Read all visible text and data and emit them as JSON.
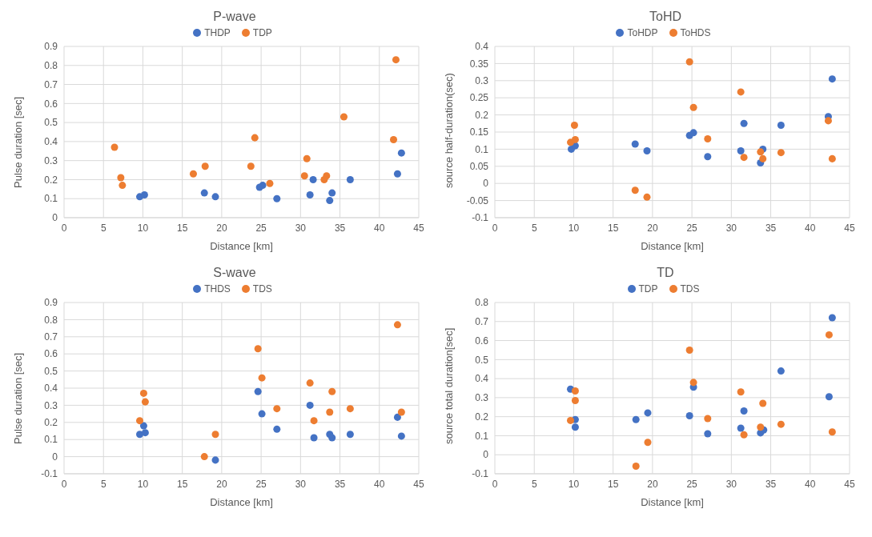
{
  "chart_data": [
    {
      "type": "scatter",
      "title": "P-wave",
      "xlabel": "Distance [km]",
      "ylabel": "Pulse duration [sec]",
      "xlim": [
        0,
        45
      ],
      "xticks": [
        0,
        5,
        10,
        15,
        20,
        25,
        30,
        35,
        40,
        45
      ],
      "ylim": [
        0,
        0.9
      ],
      "yticks": [
        0,
        0.1,
        0.2,
        0.3,
        0.4,
        0.5,
        0.6,
        0.7,
        0.8,
        0.9
      ],
      "grid": true,
      "legend": "top",
      "marker": "circle",
      "series": [
        {
          "name": "THDP",
          "color": "#4472c4",
          "x": [
            9.6,
            10.2,
            17.8,
            19.2,
            24.8,
            25.2,
            27,
            31.2,
            31.6,
            33.7,
            34,
            36.3,
            42.3,
            42.8
          ],
          "values": [
            0.11,
            0.12,
            0.13,
            0.11,
            0.16,
            0.17,
            0.1,
            0.12,
            0.2,
            0.09,
            0.13,
            0.2,
            0.23,
            0.34
          ]
        },
        {
          "name": "TDP",
          "color": "#ed7d31",
          "x": [
            6.4,
            7.2,
            7.4,
            16.4,
            17.9,
            23.7,
            24.2,
            26.1,
            30.5,
            30.8,
            33,
            33.3,
            35.5,
            41.8,
            42.1
          ],
          "values": [
            0.37,
            0.21,
            0.17,
            0.23,
            0.27,
            0.27,
            0.42,
            0.18,
            0.22,
            0.31,
            0.2,
            0.22,
            0.53,
            0.41,
            0.83
          ]
        }
      ]
    },
    {
      "type": "scatter",
      "title": "ToHD",
      "xlabel": "Distance [km]",
      "ylabel": "source half-duration(sec)",
      "xlim": [
        0,
        45
      ],
      "xticks": [
        0,
        5,
        10,
        15,
        20,
        25,
        30,
        35,
        40,
        45
      ],
      "ylim": [
        -0.1,
        0.4
      ],
      "yticks": [
        -0.1,
        -0.05,
        0,
        0.05,
        0.1,
        0.15,
        0.2,
        0.25,
        0.3,
        0.35,
        0.4
      ],
      "grid": true,
      "legend": "top",
      "marker": "circle",
      "series": [
        {
          "name": "ToHDP",
          "color": "#4472c4",
          "x": [
            9.7,
            10.2,
            17.8,
            19.3,
            24.7,
            25.2,
            27,
            31.2,
            31.6,
            33.7,
            34,
            36.3,
            42.3,
            42.8
          ],
          "values": [
            0.1,
            0.11,
            0.115,
            0.095,
            0.14,
            0.148,
            0.078,
            0.095,
            0.175,
            0.06,
            0.1,
            0.17,
            0.195,
            0.305
          ]
        },
        {
          "name": "ToHDS",
          "color": "#ed7d31",
          "x": [
            9.6,
            10.1,
            10.2,
            17.8,
            19.3,
            24.7,
            25.2,
            27,
            31.2,
            31.6,
            33.7,
            34,
            36.3,
            42.3,
            42.8
          ],
          "values": [
            0.12,
            0.17,
            0.128,
            -0.02,
            -0.04,
            0.355,
            0.222,
            0.13,
            0.267,
            0.076,
            0.092,
            0.072,
            0.09,
            0.183,
            0.072
          ]
        }
      ]
    },
    {
      "type": "scatter",
      "title": "S-wave",
      "xlabel": "Distance [km]",
      "ylabel": "Pulse duration [sec]",
      "xlim": [
        0,
        45
      ],
      "xticks": [
        0,
        5,
        10,
        15,
        20,
        25,
        30,
        35,
        40,
        45
      ],
      "ylim": [
        -0.1,
        0.9
      ],
      "yticks": [
        -0.1,
        0,
        0.1,
        0.2,
        0.3,
        0.4,
        0.5,
        0.6,
        0.7,
        0.8,
        0.9
      ],
      "grid": true,
      "legend": "top",
      "marker": "circle",
      "series": [
        {
          "name": "THDS",
          "color": "#4472c4",
          "x": [
            9.6,
            10.1,
            10.3,
            19.2,
            24.6,
            25.1,
            27,
            31.2,
            31.7,
            33.7,
            34,
            36.3,
            42.3,
            42.8
          ],
          "values": [
            0.13,
            0.18,
            0.14,
            -0.02,
            0.38,
            0.25,
            0.16,
            0.3,
            0.11,
            0.13,
            0.11,
            0.13,
            0.23,
            0.12
          ]
        },
        {
          "name": "TDS",
          "color": "#ed7d31",
          "x": [
            9.6,
            10.1,
            10.3,
            17.8,
            19.2,
            24.6,
            25.1,
            27,
            31.2,
            31.7,
            33.7,
            34,
            36.3,
            42.3,
            42.8
          ],
          "values": [
            0.21,
            0.37,
            0.32,
            0,
            0.13,
            0.63,
            0.46,
            0.28,
            0.43,
            0.21,
            0.26,
            0.38,
            0.28,
            0.77,
            0.26
          ]
        }
      ]
    },
    {
      "type": "scatter",
      "title": "TD",
      "xlabel": "Distance [km]",
      "ylabel": "source total duration[sec]",
      "xlim": [
        0,
        45
      ],
      "xticks": [
        0,
        5,
        10,
        15,
        20,
        25,
        30,
        35,
        40,
        45
      ],
      "ylim": [
        -0.1,
        0.8
      ],
      "yticks": [
        -0.1,
        0,
        0.1,
        0.2,
        0.3,
        0.4,
        0.5,
        0.6,
        0.7,
        0.8
      ],
      "grid": true,
      "legend": "top",
      "marker": "circle",
      "series": [
        {
          "name": "TDP",
          "color": "#4472c4",
          "x": [
            9.6,
            10.2,
            10.2,
            17.9,
            19.4,
            24.7,
            25.2,
            27,
            31.2,
            31.6,
            33.7,
            34.1,
            36.3,
            42.4,
            42.8
          ],
          "values": [
            0.345,
            0.185,
            0.145,
            0.185,
            0.22,
            0.205,
            0.355,
            0.11,
            0.14,
            0.23,
            0.115,
            0.13,
            0.44,
            0.305,
            0.72
          ]
        },
        {
          "name": "TDS",
          "color": "#ed7d31",
          "x": [
            9.6,
            10.2,
            10.2,
            17.9,
            19.4,
            24.7,
            25.2,
            27,
            31.2,
            31.6,
            33.7,
            34,
            36.3,
            42.4,
            42.8
          ],
          "values": [
            0.18,
            0.335,
            0.285,
            -0.06,
            0.065,
            0.55,
            0.38,
            0.19,
            0.33,
            0.105,
            0.145,
            0.27,
            0.16,
            0.63,
            0.12
          ]
        }
      ]
    }
  ]
}
